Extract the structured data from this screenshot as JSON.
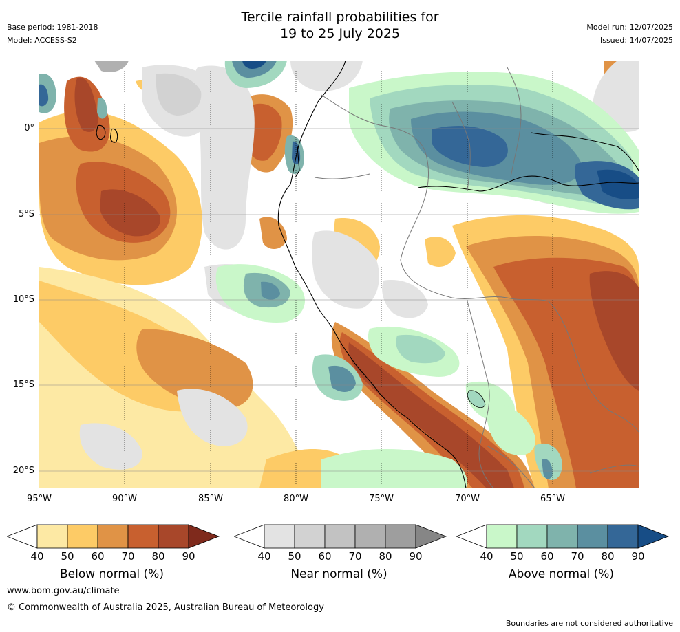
{
  "header": {
    "title_line1": "Tercile rainfall probabilities for",
    "title_line2": "19 to 25 July 2025",
    "base_period": "Base period: 1981-2018",
    "model": "Model: ACCESS-S2",
    "model_run": "Model run: 12/07/2025",
    "issued": "Issued: 14/07/2025"
  },
  "map": {
    "lat_labels": [
      "0°",
      "5°S",
      "10°S",
      "15°S",
      "20°S"
    ],
    "lon_labels": [
      "95°W",
      "90°W",
      "85°W",
      "80°W",
      "75°W",
      "70°W",
      "65°W"
    ],
    "colors": {
      "below": [
        "#fde9a4",
        "#fdcb66",
        "#e09346",
        "#c8602f",
        "#a8472a",
        "#7f2a1c"
      ],
      "near": [
        "#e3e3e3",
        "#d2d2d2",
        "#c2c2c2",
        "#b0b0b0",
        "#9e9e9e",
        "#868686"
      ],
      "above": [
        "#c9f7c9",
        "#a2d8bf",
        "#7fb3ac",
        "#5b8fa0",
        "#346797",
        "#174d86"
      ]
    }
  },
  "colorbars": [
    {
      "name": "below",
      "title": "Below normal (%)",
      "ticks": [
        "40",
        "50",
        "60",
        "70",
        "80",
        "90"
      ]
    },
    {
      "name": "near",
      "title": "Near normal (%)",
      "ticks": [
        "40",
        "50",
        "60",
        "70",
        "80",
        "90"
      ]
    },
    {
      "name": "above",
      "title": "Above normal (%)",
      "ticks": [
        "40",
        "50",
        "60",
        "70",
        "80",
        "90"
      ]
    }
  ],
  "footer": {
    "website": "www.bom.gov.au/climate",
    "copyright": "© Commonwealth of Australia 2025, Australian Bureau of Meteorology",
    "disclaimer": "Boundaries are not considered authoritative"
  }
}
